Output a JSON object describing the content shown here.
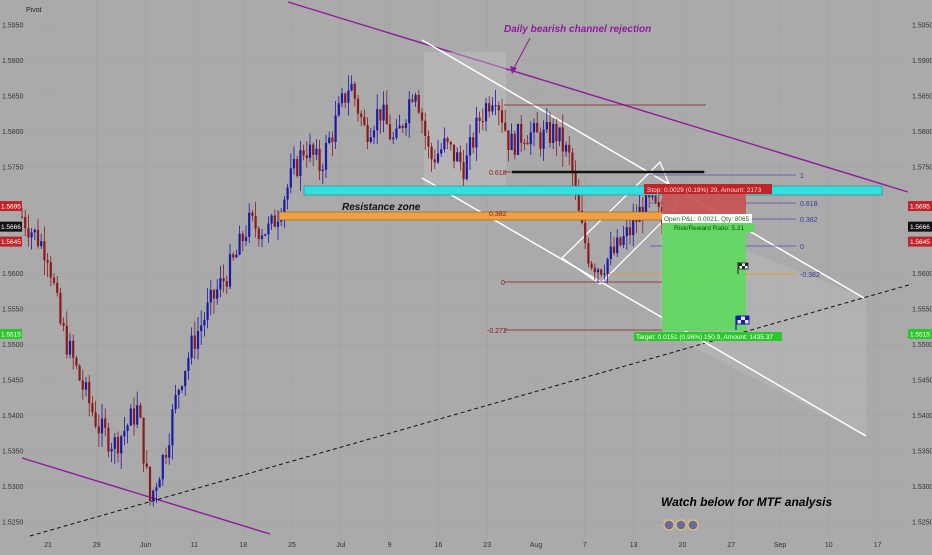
{
  "header": {
    "pivot_label": "Pivot"
  },
  "colors": {
    "background": "#aaaaaa",
    "bull_candle": "#1a1aa6",
    "bear_candle": "#8b1a1a",
    "channel_line": "#8e1b9b",
    "white_channel": "#ffffff",
    "resistance_zone": "#33dede",
    "orange_zone": "#f0a040",
    "target_zone": "#62d862",
    "stop_zone": "#c85454",
    "fib_line": "#8b1a1a",
    "axis_red_badge": "#c0242a",
    "axis_black_badge": "#111111",
    "axis_green_badge": "#2ec62e"
  },
  "chart_data": {
    "type": "candlestick",
    "symbol_note": "Pivot",
    "ylim": [
      1.5225,
      1.5985
    ],
    "y_ticks": [
      {
        "value": 1.595,
        "label": "1.5950"
      },
      {
        "value": 1.59,
        "label": "1.5900"
      },
      {
        "value": 1.585,
        "label": "1.5850"
      },
      {
        "value": 1.58,
        "label": "1.5800"
      },
      {
        "value": 1.575,
        "label": "1.5750"
      },
      {
        "value": 1.56,
        "label": "1.5600"
      },
      {
        "value": 1.555,
        "label": "1.5550"
      },
      {
        "value": 1.55,
        "label": "1.5500"
      },
      {
        "value": 1.545,
        "label": "1.5450"
      },
      {
        "value": 1.54,
        "label": "1.5400"
      },
      {
        "value": 1.535,
        "label": "1.5350"
      },
      {
        "value": 1.53,
        "label": "1.5300"
      },
      {
        "value": 1.525,
        "label": "1.5250"
      }
    ],
    "x_ticks": [
      "21",
      "29",
      "Jun",
      "11",
      "18",
      "25",
      "Jul",
      "9",
      "16",
      "23",
      "Aug",
      "7",
      "13",
      "20",
      "27",
      "Sep",
      "10",
      "17"
    ],
    "price_badges": [
      {
        "value": 1.5695,
        "label": "1.5695",
        "style": "red",
        "side": "both"
      },
      {
        "value": 1.5666,
        "label": "1.5666",
        "style": "black",
        "side": "both"
      },
      {
        "value": 1.5645,
        "label": "1.5645",
        "style": "red",
        "side": "both"
      },
      {
        "value": 1.5515,
        "label": "1.5515",
        "style": "green",
        "side": "both"
      }
    ],
    "key_points": [
      {
        "x": "May 14",
        "close": 1.568
      },
      {
        "x": "May 21",
        "close": 1.563
      },
      {
        "x": "May 29",
        "close": 1.538
      },
      {
        "x": "Jun 1",
        "low": 1.528
      },
      {
        "x": "Jun 11",
        "close": 1.551
      },
      {
        "x": "Jun 18",
        "close": 1.566
      },
      {
        "x": "Jun 25",
        "close": 1.578
      },
      {
        "x": "Jul 1",
        "high": 1.589
      },
      {
        "x": "Jul 9",
        "close": 1.578
      },
      {
        "x": "Jul 13",
        "high": 1.588
      },
      {
        "x": "Jul 23",
        "high": 1.587
      },
      {
        "x": "Aug 1",
        "close": 1.575
      },
      {
        "x": "Aug 6",
        "low": 1.562
      },
      {
        "x": "Aug 13",
        "high": 1.573
      },
      {
        "x": "Aug 15",
        "close": 1.5666
      }
    ],
    "zones": [
      {
        "name": "Resistance zone",
        "low": 1.5685,
        "high": 1.5705
      },
      {
        "name": "",
        "low": 1.5655,
        "high": 1.5675
      }
    ],
    "fib_levels": [
      {
        "label": "1",
        "value": 1.5735
      },
      {
        "label": "0.618",
        "value": 1.5735
      },
      {
        "label": "0.618",
        "value": 1.5683
      },
      {
        "label": "0.382",
        "value": 1.5666
      },
      {
        "label": "0.382",
        "value": 1.5662
      },
      {
        "label": "0",
        "value": 1.5637
      },
      {
        "label": "-0.382",
        "value": 1.5604
      },
      {
        "label": "0",
        "value": 1.558
      },
      {
        "label": "-0.272",
        "value": 1.5524
      }
    ],
    "position": {
      "type": "short",
      "entry": 1.5666,
      "stop": 1.5695,
      "target": 1.5515,
      "label_pnl": "Open P&L: 0.0021, Qty: 8065",
      "label_rr": "Risk/Reward Ratio: 5.21",
      "label_stop": "Stop: 0.0029 (0.19%) 29, Amount: 2173",
      "label_target": "Target: 0.0151 (0.96%) 150.9, Amount: 1435.37"
    },
    "annotations": [
      "Daily bearish channel rejection",
      "Resistance zone",
      "Watch below for MTF analysis"
    ]
  },
  "annotations": {
    "channel_note": "Daily bearish channel rejection",
    "zone_note": "Resistance zone",
    "footer_note": "Watch below for MTF analysis"
  },
  "position_labels": {
    "stop": "Stop: 0.0029 (0.19%) 29, Amount: 2173",
    "pnl": "Open P&L: 0.0021, Qty: 8065",
    "rr": "Risk/Reward Ratio: 5.21",
    "target": "Target: 0.0151 (0.96%) 150.9, Amount: 1435.37"
  },
  "fib_labels": {
    "left_0618": "0.618",
    "left_0382": "0.382",
    "left_0": "0",
    "left_m0272": "-0.272",
    "right_1": "1",
    "right_0618": "0.618",
    "right_0382": "0.382",
    "right_0": "0",
    "right_m0382": "-0.382"
  },
  "footer": {
    "icon_label": "logo-icons"
  }
}
